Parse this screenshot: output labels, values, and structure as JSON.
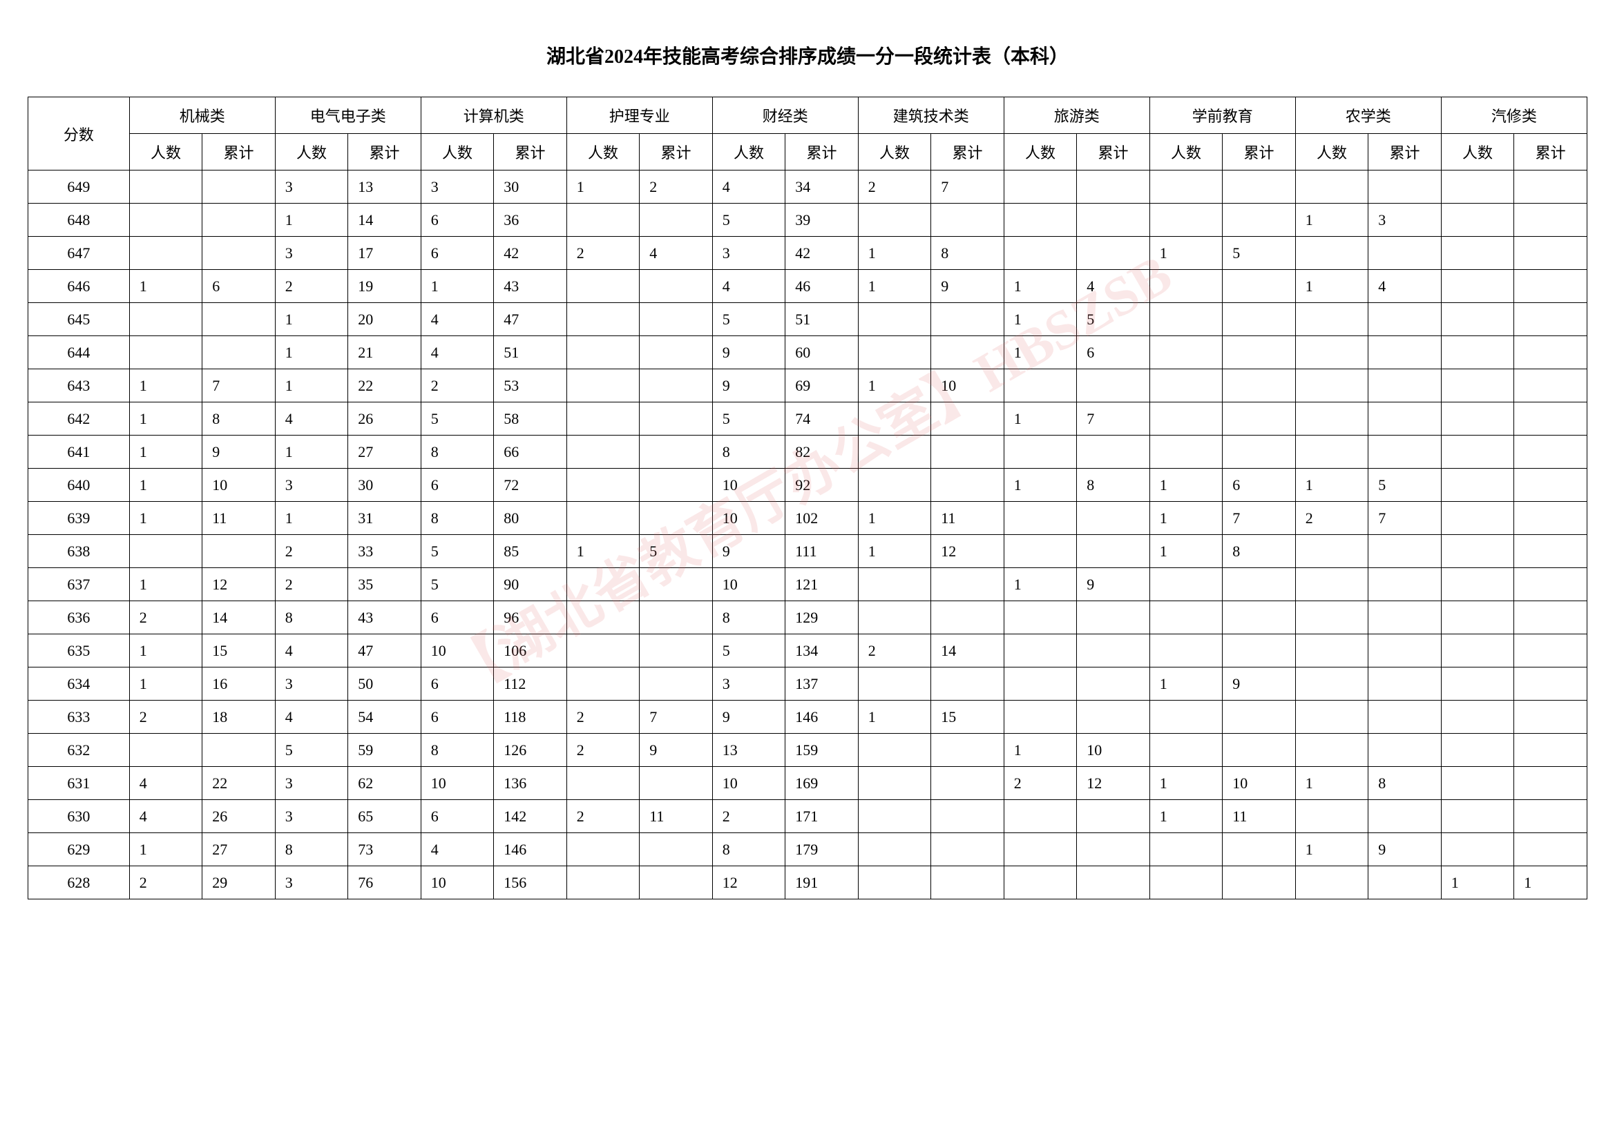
{
  "title": "湖北省2024年技能高考综合排序成绩一分一段统计表（本科）",
  "watermark": "【湖北省教育厅办公室】HBSZSB",
  "header": {
    "score": "分数",
    "categories": [
      "机械类",
      "电气电子类",
      "计算机类",
      "护理专业",
      "财经类",
      "建筑技术类",
      "旅游类",
      "学前教育",
      "农学类",
      "汽修类"
    ],
    "count": "人数",
    "cumulative": "累计"
  },
  "rows": [
    {
      "score": "649",
      "data": [
        [
          "",
          ""
        ],
        [
          "3",
          "13"
        ],
        [
          "3",
          "30"
        ],
        [
          "1",
          "2"
        ],
        [
          "4",
          "34"
        ],
        [
          "2",
          "7"
        ],
        [
          "",
          ""
        ],
        [
          "",
          ""
        ],
        [
          "",
          ""
        ],
        [
          "",
          ""
        ]
      ]
    },
    {
      "score": "648",
      "data": [
        [
          "",
          ""
        ],
        [
          "1",
          "14"
        ],
        [
          "6",
          "36"
        ],
        [
          "",
          ""
        ],
        [
          "5",
          "39"
        ],
        [
          "",
          ""
        ],
        [
          "",
          ""
        ],
        [
          "",
          ""
        ],
        [
          "1",
          "3"
        ],
        [
          "",
          ""
        ]
      ]
    },
    {
      "score": "647",
      "data": [
        [
          "",
          ""
        ],
        [
          "3",
          "17"
        ],
        [
          "6",
          "42"
        ],
        [
          "2",
          "4"
        ],
        [
          "3",
          "42"
        ],
        [
          "1",
          "8"
        ],
        [
          "",
          ""
        ],
        [
          "1",
          "5"
        ],
        [
          "",
          ""
        ],
        [
          "",
          ""
        ]
      ]
    },
    {
      "score": "646",
      "data": [
        [
          "1",
          "6"
        ],
        [
          "2",
          "19"
        ],
        [
          "1",
          "43"
        ],
        [
          "",
          ""
        ],
        [
          "4",
          "46"
        ],
        [
          "1",
          "9"
        ],
        [
          "1",
          "4"
        ],
        [
          "",
          ""
        ],
        [
          "1",
          "4"
        ],
        [
          "",
          ""
        ]
      ]
    },
    {
      "score": "645",
      "data": [
        [
          "",
          ""
        ],
        [
          "1",
          "20"
        ],
        [
          "4",
          "47"
        ],
        [
          "",
          ""
        ],
        [
          "5",
          "51"
        ],
        [
          "",
          ""
        ],
        [
          "1",
          "5"
        ],
        [
          "",
          ""
        ],
        [
          "",
          ""
        ],
        [
          "",
          ""
        ]
      ]
    },
    {
      "score": "644",
      "data": [
        [
          "",
          ""
        ],
        [
          "1",
          "21"
        ],
        [
          "4",
          "51"
        ],
        [
          "",
          ""
        ],
        [
          "9",
          "60"
        ],
        [
          "",
          ""
        ],
        [
          "1",
          "6"
        ],
        [
          "",
          ""
        ],
        [
          "",
          ""
        ],
        [
          "",
          ""
        ]
      ]
    },
    {
      "score": "643",
      "data": [
        [
          "1",
          "7"
        ],
        [
          "1",
          "22"
        ],
        [
          "2",
          "53"
        ],
        [
          "",
          ""
        ],
        [
          "9",
          "69"
        ],
        [
          "1",
          "10"
        ],
        [
          "",
          ""
        ],
        [
          "",
          ""
        ],
        [
          "",
          ""
        ],
        [
          "",
          ""
        ]
      ]
    },
    {
      "score": "642",
      "data": [
        [
          "1",
          "8"
        ],
        [
          "4",
          "26"
        ],
        [
          "5",
          "58"
        ],
        [
          "",
          ""
        ],
        [
          "5",
          "74"
        ],
        [
          "",
          ""
        ],
        [
          "1",
          "7"
        ],
        [
          "",
          ""
        ],
        [
          "",
          ""
        ],
        [
          "",
          ""
        ]
      ]
    },
    {
      "score": "641",
      "data": [
        [
          "1",
          "9"
        ],
        [
          "1",
          "27"
        ],
        [
          "8",
          "66"
        ],
        [
          "",
          ""
        ],
        [
          "8",
          "82"
        ],
        [
          "",
          ""
        ],
        [
          "",
          ""
        ],
        [
          "",
          ""
        ],
        [
          "",
          ""
        ],
        [
          "",
          ""
        ]
      ]
    },
    {
      "score": "640",
      "data": [
        [
          "1",
          "10"
        ],
        [
          "3",
          "30"
        ],
        [
          "6",
          "72"
        ],
        [
          "",
          ""
        ],
        [
          "10",
          "92"
        ],
        [
          "",
          ""
        ],
        [
          "1",
          "8"
        ],
        [
          "1",
          "6"
        ],
        [
          "1",
          "5"
        ],
        [
          "",
          ""
        ]
      ]
    },
    {
      "score": "639",
      "data": [
        [
          "1",
          "11"
        ],
        [
          "1",
          "31"
        ],
        [
          "8",
          "80"
        ],
        [
          "",
          ""
        ],
        [
          "10",
          "102"
        ],
        [
          "1",
          "11"
        ],
        [
          "",
          ""
        ],
        [
          "1",
          "7"
        ],
        [
          "2",
          "7"
        ],
        [
          "",
          ""
        ]
      ]
    },
    {
      "score": "638",
      "data": [
        [
          "",
          ""
        ],
        [
          "2",
          "33"
        ],
        [
          "5",
          "85"
        ],
        [
          "1",
          "5"
        ],
        [
          "9",
          "111"
        ],
        [
          "1",
          "12"
        ],
        [
          "",
          ""
        ],
        [
          "1",
          "8"
        ],
        [
          "",
          ""
        ],
        [
          "",
          ""
        ]
      ]
    },
    {
      "score": "637",
      "data": [
        [
          "1",
          "12"
        ],
        [
          "2",
          "35"
        ],
        [
          "5",
          "90"
        ],
        [
          "",
          ""
        ],
        [
          "10",
          "121"
        ],
        [
          "",
          ""
        ],
        [
          "1",
          "9"
        ],
        [
          "",
          ""
        ],
        [
          "",
          ""
        ],
        [
          "",
          ""
        ]
      ]
    },
    {
      "score": "636",
      "data": [
        [
          "2",
          "14"
        ],
        [
          "8",
          "43"
        ],
        [
          "6",
          "96"
        ],
        [
          "",
          ""
        ],
        [
          "8",
          "129"
        ],
        [
          "",
          ""
        ],
        [
          "",
          ""
        ],
        [
          "",
          ""
        ],
        [
          "",
          ""
        ],
        [
          "",
          ""
        ]
      ]
    },
    {
      "score": "635",
      "data": [
        [
          "1",
          "15"
        ],
        [
          "4",
          "47"
        ],
        [
          "10",
          "106"
        ],
        [
          "",
          ""
        ],
        [
          "5",
          "134"
        ],
        [
          "2",
          "14"
        ],
        [
          "",
          ""
        ],
        [
          "",
          ""
        ],
        [
          "",
          ""
        ],
        [
          "",
          ""
        ]
      ]
    },
    {
      "score": "634",
      "data": [
        [
          "1",
          "16"
        ],
        [
          "3",
          "50"
        ],
        [
          "6",
          "112"
        ],
        [
          "",
          ""
        ],
        [
          "3",
          "137"
        ],
        [
          "",
          ""
        ],
        [
          "",
          ""
        ],
        [
          "1",
          "9"
        ],
        [
          "",
          ""
        ],
        [
          "",
          ""
        ]
      ]
    },
    {
      "score": "633",
      "data": [
        [
          "2",
          "18"
        ],
        [
          "4",
          "54"
        ],
        [
          "6",
          "118"
        ],
        [
          "2",
          "7"
        ],
        [
          "9",
          "146"
        ],
        [
          "1",
          "15"
        ],
        [
          "",
          ""
        ],
        [
          "",
          ""
        ],
        [
          "",
          ""
        ],
        [
          "",
          ""
        ]
      ]
    },
    {
      "score": "632",
      "data": [
        [
          "",
          ""
        ],
        [
          "5",
          "59"
        ],
        [
          "8",
          "126"
        ],
        [
          "2",
          "9"
        ],
        [
          "13",
          "159"
        ],
        [
          "",
          ""
        ],
        [
          "1",
          "10"
        ],
        [
          "",
          ""
        ],
        [
          "",
          ""
        ],
        [
          "",
          ""
        ]
      ]
    },
    {
      "score": "631",
      "data": [
        [
          "4",
          "22"
        ],
        [
          "3",
          "62"
        ],
        [
          "10",
          "136"
        ],
        [
          "",
          ""
        ],
        [
          "10",
          "169"
        ],
        [
          "",
          ""
        ],
        [
          "2",
          "12"
        ],
        [
          "1",
          "10"
        ],
        [
          "1",
          "8"
        ],
        [
          "",
          ""
        ]
      ]
    },
    {
      "score": "630",
      "data": [
        [
          "4",
          "26"
        ],
        [
          "3",
          "65"
        ],
        [
          "6",
          "142"
        ],
        [
          "2",
          "11"
        ],
        [
          "2",
          "171"
        ],
        [
          "",
          ""
        ],
        [
          "",
          ""
        ],
        [
          "1",
          "11"
        ],
        [
          "",
          ""
        ],
        [
          "",
          ""
        ]
      ]
    },
    {
      "score": "629",
      "data": [
        [
          "1",
          "27"
        ],
        [
          "8",
          "73"
        ],
        [
          "4",
          "146"
        ],
        [
          "",
          ""
        ],
        [
          "8",
          "179"
        ],
        [
          "",
          ""
        ],
        [
          "",
          ""
        ],
        [
          "",
          ""
        ],
        [
          "1",
          "9"
        ],
        [
          "",
          ""
        ]
      ]
    },
    {
      "score": "628",
      "data": [
        [
          "2",
          "29"
        ],
        [
          "3",
          "76"
        ],
        [
          "10",
          "156"
        ],
        [
          "",
          ""
        ],
        [
          "12",
          "191"
        ],
        [
          "",
          ""
        ],
        [
          "",
          ""
        ],
        [
          "",
          ""
        ],
        [
          "",
          ""
        ],
        [
          "1",
          "1"
        ]
      ]
    }
  ],
  "styles": {
    "background_color": "#ffffff",
    "border_color": "#000000",
    "text_color": "#000000",
    "watermark_color": "rgba(220,100,100,0.15)",
    "title_fontsize": 28,
    "cell_fontsize": 22
  }
}
